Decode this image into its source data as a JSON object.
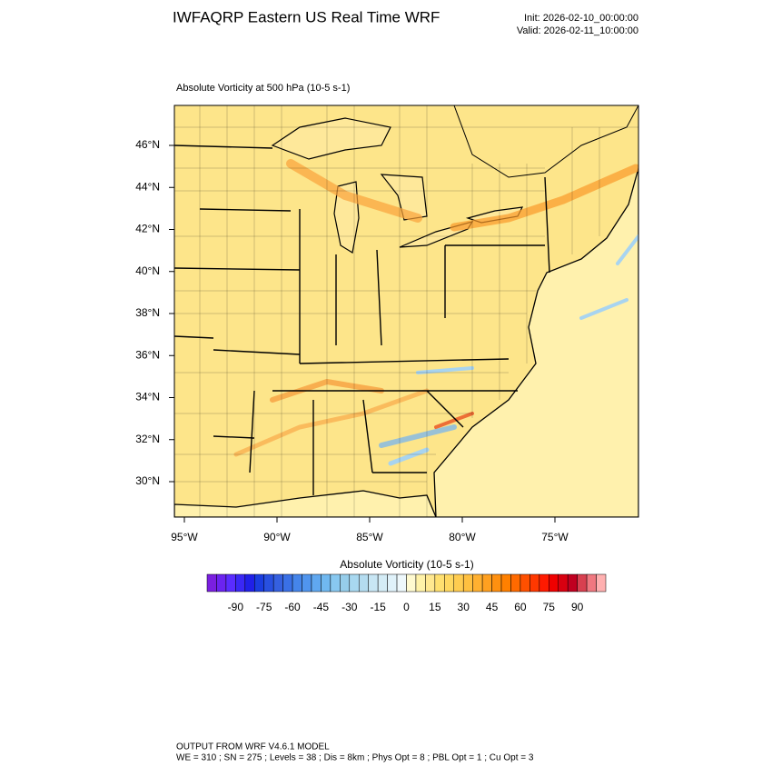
{
  "header": {
    "title": "IWFAQRP Eastern US Real Time WRF",
    "init": "Init: 2026-02-10_00:00:00",
    "valid": "Valid: 2026-02-11_10:00:00"
  },
  "map": {
    "title": "Absolute Vorticity at 500 hPa   (10-5 s-1)",
    "lat_labels": [
      "46°N",
      "44°N",
      "42°N",
      "40°N",
      "38°N",
      "36°N",
      "34°N",
      "32°N",
      "30°N"
    ],
    "lon_labels": [
      "95°W",
      "90°W",
      "85°W",
      "80°W",
      "75°W"
    ]
  },
  "colorbar": {
    "title": "Absolute Vorticity  (10-5 s-1)",
    "labels": [
      "-90",
      "-75",
      "-60",
      "-45",
      "-30",
      "-15",
      "0",
      "15",
      "30",
      "45",
      "60",
      "75",
      "90"
    ],
    "colors": [
      "#7a1fe0",
      "#6b23f0",
      "#5a2cff",
      "#3a28f5",
      "#2020e8",
      "#1a3de0",
      "#2850e0",
      "#3560e0",
      "#3a70e6",
      "#4585ea",
      "#5095ee",
      "#60a8f0",
      "#70b8f0",
      "#88c8f0",
      "#96cdea",
      "#a8d8f0",
      "#b4dcf0",
      "#c8e6f4",
      "#d4ecf6",
      "#e0f2fa",
      "#eef8fc",
      "#fffad0",
      "#fff2a8",
      "#ffe890",
      "#ffe070",
      "#ffd860",
      "#ffcc50",
      "#ffc040",
      "#ffb030",
      "#ffa020",
      "#ff9010",
      "#ff8000",
      "#ff6a00",
      "#ff5000",
      "#ff3800",
      "#ff1a00",
      "#f00000",
      "#d80010",
      "#c00020",
      "#d84050",
      "#f07880",
      "#ffb0b0"
    ]
  },
  "footer": {
    "line1": "OUTPUT FROM WRF V4.6.1 MODEL",
    "line2": "WE = 310 ; SN = 275 ; Levels = 38 ; Dis = 8km ; Phys Opt = 8 ; PBL Opt = 1 ; Cu Opt = 3"
  }
}
